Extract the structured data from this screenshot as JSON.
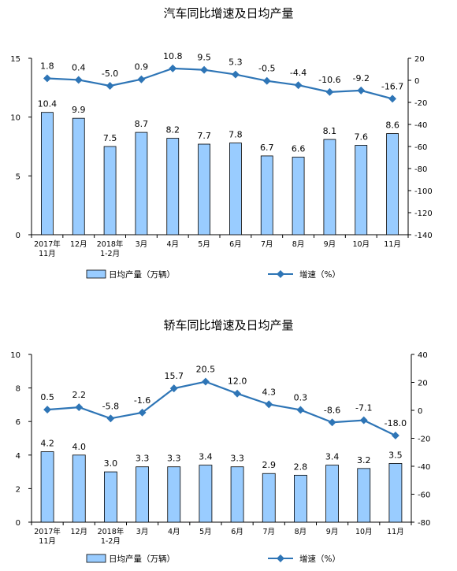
{
  "chart_data": [
    {
      "type": "bar",
      "title": "汽车同比增速及日均产量",
      "categories": [
        "2017年\n11月",
        "12月",
        "2018年\n1-2月",
        "3月",
        "4月",
        "5月",
        "6月",
        "7月",
        "8月",
        "9月",
        "10月",
        "11月"
      ],
      "series": [
        {
          "name": "日均产量（万辆）",
          "type": "bar",
          "axis": "left",
          "values": [
            10.4,
            9.9,
            7.5,
            8.7,
            8.2,
            7.7,
            7.8,
            6.7,
            6.6,
            8.1,
            7.6,
            8.6
          ]
        },
        {
          "name": "增速（%）",
          "type": "line",
          "axis": "right",
          "values": [
            1.8,
            0.4,
            -5.0,
            0.9,
            10.8,
            9.5,
            5.3,
            -0.5,
            -4.4,
            -10.6,
            -9.2,
            -16.7
          ]
        }
      ],
      "bar_labels": [
        "10.4",
        "9.9",
        "7.5",
        "8.7",
        "8.2",
        "7.7",
        "7.8",
        "6.7",
        "6.6",
        "8.1",
        "7.6",
        "8.6"
      ],
      "line_labels": [
        "1.8",
        "0.4",
        "-5.0",
        "0.9",
        "10.8",
        "9.5",
        "5.3",
        "-0.5",
        "-4.4",
        "-10.6",
        "-9.2",
        "-16.7"
      ],
      "ylim_left": [
        0,
        15
      ],
      "yticks_left": [
        0,
        5,
        10,
        15
      ],
      "ylim_right": [
        -140,
        20
      ],
      "yticks_right": [
        -140,
        -120,
        -100,
        -80,
        -60,
        -40,
        -20,
        0,
        20
      ],
      "legend": [
        "日均产量（万辆）",
        "增速（%）"
      ],
      "legend_position": "bottom",
      "grid": false,
      "colors": {
        "bar_fill": "#99ccff",
        "bar_stroke": "#000000",
        "line": "#2e75b6"
      }
    },
    {
      "type": "bar",
      "title": "轿车同比增速及日均产量",
      "categories": [
        "2017年\n11月",
        "12月",
        "2018年\n1-2月",
        "3月",
        "4月",
        "5月",
        "6月",
        "7月",
        "8月",
        "9月",
        "10月",
        "11月"
      ],
      "series": [
        {
          "name": "日均产量（万辆）",
          "type": "bar",
          "axis": "left",
          "values": [
            4.2,
            4.0,
            3.0,
            3.3,
            3.3,
            3.4,
            3.3,
            2.9,
            2.8,
            3.4,
            3.2,
            3.5
          ]
        },
        {
          "name": "增速（%）",
          "type": "line",
          "axis": "right",
          "values": [
            0.5,
            2.2,
            -5.8,
            -1.6,
            15.7,
            20.5,
            12.0,
            4.3,
            0.3,
            -8.6,
            -7.1,
            -18.0
          ]
        }
      ],
      "bar_labels": [
        "4.2",
        "4.0",
        "3.0",
        "3.3",
        "3.3",
        "3.4",
        "3.3",
        "2.9",
        "2.8",
        "3.4",
        "3.2",
        "3.5"
      ],
      "line_labels": [
        "0.5",
        "2.2",
        "-5.8",
        "-1.6",
        "15.7",
        "20.5",
        "12.0",
        "4.3",
        "0.3",
        "-8.6",
        "-7.1",
        "-18.0"
      ],
      "ylim_left": [
        0,
        10
      ],
      "yticks_left": [
        0,
        2,
        4,
        6,
        8,
        10
      ],
      "ylim_right": [
        -80,
        40
      ],
      "yticks_right": [
        -80,
        -60,
        -40,
        -20,
        0,
        20,
        40
      ],
      "legend": [
        "日均产量（万辆）",
        "增速（%）"
      ],
      "legend_position": "bottom",
      "grid": false,
      "colors": {
        "bar_fill": "#99ccff",
        "bar_stroke": "#000000",
        "line": "#2e75b6"
      }
    }
  ]
}
